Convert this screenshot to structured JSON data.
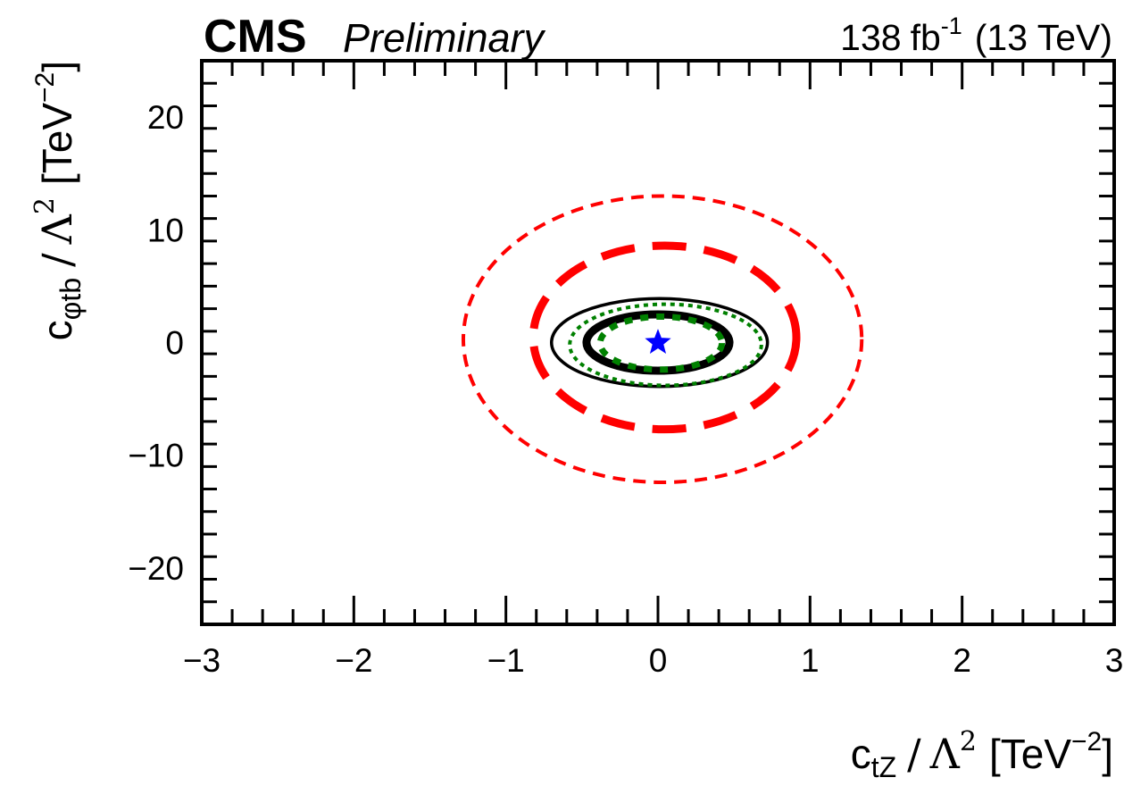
{
  "header": {
    "experiment": "CMS",
    "status": "Preliminary",
    "lumi": "138",
    "lumi_unit": "fb",
    "lumi_exp": "-1",
    "energy": "(13 TeV)"
  },
  "axes": {
    "xlabel": {
      "main": "c",
      "sub": "tZ",
      "sep": "/",
      "lambda": "Λ",
      "lambda_exp": "2",
      "unit": "[TeV",
      "unit_exp": "−2",
      "close": "]"
    },
    "ylabel": {
      "main": "c",
      "sub": "φtb",
      "sep": "/",
      "lambda": "Λ",
      "lambda_exp": "2",
      "unit": "[TeV",
      "unit_exp": "−2",
      "close": "]"
    },
    "xticks": [
      {
        "value": -3,
        "label": "−3"
      },
      {
        "value": -2,
        "label": "−2"
      },
      {
        "value": -1,
        "label": "−1"
      },
      {
        "value": 0,
        "label": "0"
      },
      {
        "value": 1,
        "label": "1"
      },
      {
        "value": 2,
        "label": "2"
      },
      {
        "value": 3,
        "label": "3"
      }
    ],
    "yticks": [
      {
        "value": -20,
        "label": "−20"
      },
      {
        "value": -10,
        "label": "−10"
      },
      {
        "value": 0,
        "label": "0"
      },
      {
        "value": 10,
        "label": "10"
      },
      {
        "value": 20,
        "label": "20"
      }
    ]
  },
  "chart_data": {
    "type": "scatter",
    "title": "",
    "xlabel": "c_tZ / Λ^2 [TeV^-2]",
    "ylabel": "c_φtb / Λ^2 [TeV^-2]",
    "xlim": [
      -3,
      3
    ],
    "ylim": [
      -25,
      25
    ],
    "x_minor_step": 0.2,
    "y_minor_step": 2,
    "grid": false,
    "legend": "none",
    "best_fit": {
      "x": 0.0,
      "y": 0.0,
      "marker": "star",
      "color": "#0000ff"
    },
    "contours": [
      {
        "color": "#ff0000",
        "style": "dashed-thin",
        "xmin": -1.28,
        "xmax": 1.34,
        "ymin": -12.4,
        "ymax": 13.0
      },
      {
        "color": "#ff0000",
        "style": "dashed-thick",
        "xmin": -0.82,
        "xmax": 0.91,
        "ymin": -7.7,
        "ymax": 8.6
      },
      {
        "color": "#000000",
        "style": "solid-thin",
        "xmin": -0.7,
        "xmax": 0.72,
        "ymin": -3.9,
        "ymax": 3.9
      },
      {
        "color": "#008000",
        "style": "dotted-thin",
        "xmin": -0.58,
        "xmax": 0.68,
        "ymin": -3.8,
        "ymax": 3.4
      },
      {
        "color": "#000000",
        "style": "solid-thick",
        "xmin": -0.47,
        "xmax": 0.47,
        "ymin": -2.5,
        "ymax": 2.5
      },
      {
        "color": "#008000",
        "style": "dotted-thick",
        "xmin": -0.38,
        "xmax": 0.42,
        "ymin": -2.4,
        "ymax": 2.3
      }
    ]
  }
}
